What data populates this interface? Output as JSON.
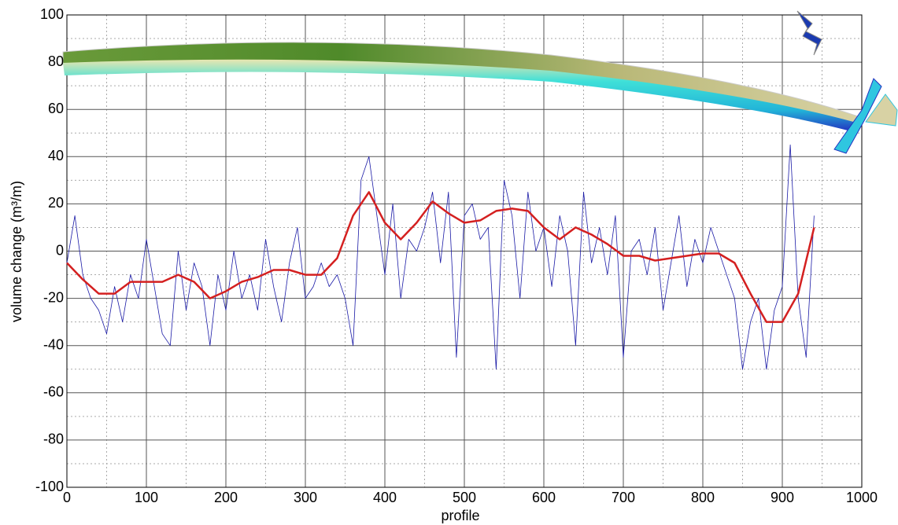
{
  "chart_data": {
    "type": "line",
    "xlabel": "profile",
    "ylabel": "volume change (m³/m)",
    "xlim": [
      0,
      1000
    ],
    "ylim": [
      -100,
      100
    ],
    "xticks": [
      0,
      100,
      200,
      300,
      400,
      500,
      600,
      700,
      800,
      900,
      1000
    ],
    "yticks": [
      -100,
      -80,
      -60,
      -40,
      -20,
      0,
      20,
      40,
      60,
      80,
      100
    ],
    "xminorticks": [
      50,
      150,
      250,
      350,
      450,
      550,
      650,
      750,
      850,
      950
    ],
    "yminorticks": [
      -90,
      -70,
      -50,
      -30,
      -10,
      10,
      30,
      50,
      70,
      90
    ],
    "grid": true,
    "series": [
      {
        "color": "#1a1aa6",
        "width": 0.8,
        "x": [
          0,
          10,
          20,
          30,
          40,
          50,
          60,
          70,
          80,
          90,
          100,
          110,
          120,
          130,
          140,
          150,
          160,
          170,
          180,
          190,
          200,
          210,
          220,
          230,
          240,
          250,
          260,
          270,
          280,
          290,
          300,
          310,
          320,
          330,
          340,
          350,
          360,
          370,
          380,
          390,
          400,
          410,
          420,
          430,
          440,
          450,
          460,
          470,
          480,
          490,
          500,
          510,
          520,
          530,
          540,
          550,
          560,
          570,
          580,
          590,
          600,
          610,
          620,
          630,
          640,
          650,
          660,
          670,
          680,
          690,
          700,
          710,
          720,
          730,
          740,
          750,
          760,
          770,
          780,
          790,
          800,
          810,
          820,
          830,
          840,
          850,
          860,
          870,
          880,
          890,
          900,
          910,
          920,
          930,
          940
        ],
        "values": [
          -5,
          15,
          -10,
          -20,
          -25,
          -35,
          -15,
          -30,
          -10,
          -20,
          5,
          -15,
          -35,
          -40,
          0,
          -25,
          -5,
          -15,
          -40,
          -10,
          -25,
          0,
          -20,
          -10,
          -25,
          5,
          -15,
          -30,
          -5,
          10,
          -20,
          -15,
          -5,
          -15,
          -10,
          -20,
          -40,
          30,
          40,
          15,
          -10,
          20,
          -20,
          5,
          0,
          10,
          25,
          -5,
          25,
          -45,
          15,
          20,
          5,
          10,
          -50,
          30,
          15,
          -20,
          25,
          0,
          10,
          -15,
          15,
          0,
          -40,
          25,
          -5,
          10,
          -10,
          15,
          -45,
          0,
          5,
          -10,
          10,
          -25,
          -5,
          15,
          -15,
          5,
          -5,
          10,
          0,
          -10,
          -20,
          -50,
          -30,
          -20,
          -50,
          -25,
          -15,
          45,
          -20,
          -45,
          15
        ]
      },
      {
        "color": "#d42020",
        "width": 2.5,
        "x": [
          0,
          20,
          40,
          60,
          80,
          100,
          120,
          140,
          160,
          180,
          200,
          220,
          240,
          260,
          280,
          300,
          320,
          340,
          360,
          380,
          400,
          420,
          440,
          460,
          480,
          500,
          520,
          540,
          560,
          580,
          600,
          620,
          640,
          660,
          680,
          700,
          720,
          740,
          760,
          780,
          800,
          820,
          840,
          860,
          880,
          900,
          920,
          940
        ],
        "values": [
          -5,
          -12,
          -18,
          -18,
          -13,
          -13,
          -13,
          -10,
          -13,
          -20,
          -17,
          -13,
          -11,
          -8,
          -8,
          -10,
          -10,
          -3,
          15,
          25,
          12,
          5,
          12,
          21,
          16,
          12,
          13,
          17,
          18,
          17,
          10,
          5,
          10,
          7,
          3,
          -2,
          -2,
          -4,
          -3,
          -2,
          -1,
          -1,
          -5,
          -18,
          -30,
          -30,
          -18,
          10
        ]
      }
    ]
  }
}
